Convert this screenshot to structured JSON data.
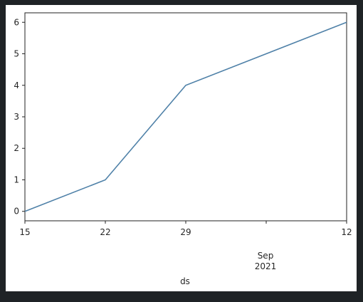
{
  "chart_data": {
    "type": "line",
    "xlabel": "ds",
    "ylabel": "",
    "x": [
      "2021-08-15",
      "2021-08-22",
      "2021-08-29",
      "2021-09-12"
    ],
    "series": [
      {
        "values": [
          0,
          1,
          4,
          6
        ],
        "color": "#4f81a8"
      }
    ],
    "xlim": [
      "2021-08-15",
      "2021-09-12"
    ],
    "ylim": [
      -0.3,
      6.3
    ],
    "yticks": [
      0,
      1,
      2,
      3,
      4,
      5,
      6
    ],
    "xticks": [
      {
        "date": "2021-08-15",
        "label": "15"
      },
      {
        "date": "2021-08-22",
        "label": "22"
      },
      {
        "date": "2021-08-29",
        "label": "29"
      },
      {
        "date": "2021-09-05",
        "label": ""
      },
      {
        "date": "2021-09-12",
        "label": "12"
      }
    ],
    "month_annotation": {
      "date": "2021-09-05",
      "month": "Sep",
      "year": "2021"
    },
    "grid": false,
    "legend": "none"
  }
}
